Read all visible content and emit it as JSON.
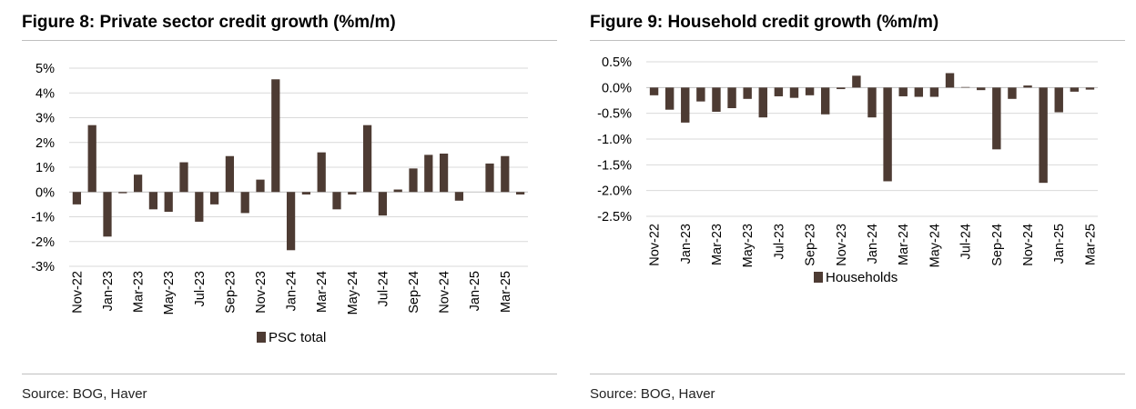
{
  "colors": {
    "bar": "#4d3b33",
    "grid": "#d9d9d9",
    "zero_line": "#bfbfbf",
    "text": "#000000",
    "rule": "#bfbfbf"
  },
  "left": {
    "title": "Figure 8: Private sector credit growth (%m/m)",
    "source": "Source: BOG, Haver"
  },
  "right": {
    "title": "Figure 9: Household credit growth (%m/m)",
    "source": "Source: BOG, Haver"
  },
  "chart_data": [
    {
      "type": "bar",
      "title": "Figure 8: Private sector credit growth (%m/m)",
      "categories": [
        "Nov-22",
        "Dec-22",
        "Jan-23",
        "Feb-23",
        "Mar-23",
        "Apr-23",
        "May-23",
        "Jun-23",
        "Jul-23",
        "Aug-23",
        "Sep-23",
        "Oct-23",
        "Nov-23",
        "Dec-23",
        "Jan-24",
        "Feb-24",
        "Mar-24",
        "Apr-24",
        "May-24",
        "Jun-24",
        "Jul-24",
        "Aug-24",
        "Sep-24",
        "Oct-24",
        "Nov-24",
        "Dec-24",
        "Jan-25",
        "Feb-25",
        "Mar-25",
        "Apr-25"
      ],
      "x_tick_labels": [
        "Nov-22",
        "Jan-23",
        "Mar-23",
        "May-23",
        "Jul-23",
        "Sep-23",
        "Nov-23",
        "Jan-24",
        "Mar-24",
        "May-24",
        "Jul-24",
        "Sep-24",
        "Nov-24",
        "Jan-25",
        "Mar-25"
      ],
      "series": [
        {
          "name": "PSC total",
          "values": [
            -0.5,
            2.7,
            -1.8,
            -0.05,
            0.7,
            -0.7,
            -0.8,
            1.2,
            -1.2,
            -0.5,
            1.45,
            -0.85,
            0.5,
            4.55,
            -2.35,
            -0.1,
            1.6,
            -0.7,
            -0.1,
            2.7,
            -0.95,
            0.1,
            0.95,
            1.5,
            1.55,
            -0.35,
            0.0,
            1.15,
            1.45,
            -0.1
          ]
        }
      ],
      "y_ticks": [
        "5%",
        "4%",
        "3%",
        "2%",
        "1%",
        "0%",
        "-1%",
        "-2%",
        "-3%"
      ],
      "ylim": [
        -3,
        5
      ],
      "xlabel": "",
      "ylabel": "",
      "grid": true,
      "legend": "bottom"
    },
    {
      "type": "bar",
      "title": "Figure 9: Household credit growth (%m/m)",
      "categories": [
        "Nov-22",
        "Dec-22",
        "Jan-23",
        "Feb-23",
        "Mar-23",
        "Apr-23",
        "May-23",
        "Jun-23",
        "Jul-23",
        "Aug-23",
        "Sep-23",
        "Oct-23",
        "Nov-23",
        "Dec-23",
        "Jan-24",
        "Feb-24",
        "Mar-24",
        "Apr-24",
        "May-24",
        "Jun-24",
        "Jul-24",
        "Aug-24",
        "Sep-24",
        "Oct-24",
        "Nov-24",
        "Dec-24",
        "Jan-25",
        "Feb-25",
        "Mar-25"
      ],
      "x_tick_labels": [
        "Nov-22",
        "Jan-23",
        "Mar-23",
        "May-23",
        "Jul-23",
        "Sep-23",
        "Nov-23",
        "Jan-24",
        "Mar-24",
        "May-24",
        "Jul-24",
        "Sep-24",
        "Nov-24",
        "Jan-25",
        "Mar-25"
      ],
      "series": [
        {
          "name": "Households",
          "values": [
            -0.15,
            -0.43,
            -0.68,
            -0.27,
            -0.47,
            -0.4,
            -0.22,
            -0.58,
            -0.17,
            -0.2,
            -0.15,
            -0.52,
            -0.03,
            0.23,
            -0.58,
            -1.82,
            -0.17,
            -0.18,
            -0.18,
            0.28,
            0.01,
            -0.05,
            -1.2,
            -0.22,
            0.04,
            -1.85,
            -0.48,
            -0.08,
            -0.04
          ]
        }
      ],
      "y_ticks": [
        "0.5%",
        "0.0%",
        "-0.5%",
        "-1.0%",
        "-1.5%",
        "-2.0%",
        "-2.5%"
      ],
      "ylim": [
        -2.5,
        0.5
      ],
      "xlabel": "",
      "ylabel": "",
      "grid": true,
      "legend": "bottom"
    }
  ]
}
